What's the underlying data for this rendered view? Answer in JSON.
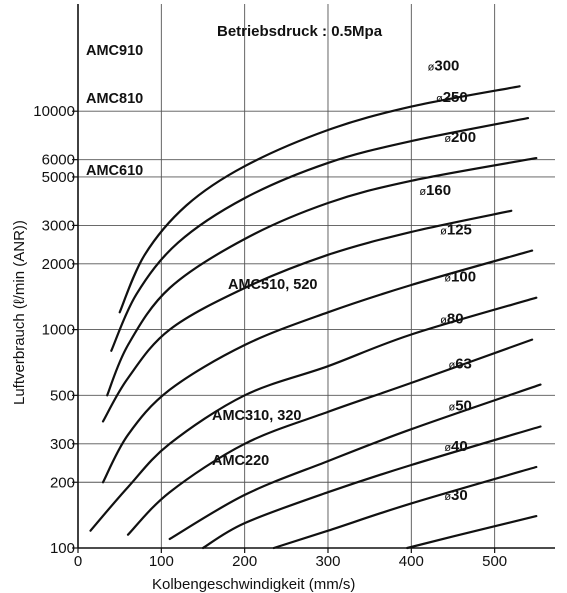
{
  "chart_data": {
    "type": "line",
    "title": "Betriebsdruck : 0.5Mpa",
    "xlabel": "Kolbengeschwindigkeit (mm/s)",
    "ylabel": "Luftverbrauch (ℓ/min (ANR))",
    "xlim": [
      0,
      580
    ],
    "ylim": [
      100,
      15000
    ],
    "yscale": "log",
    "grid": true,
    "x_ticks": [
      "0",
      "100",
      "200",
      "300",
      "400",
      "500"
    ],
    "y_ticks": [
      "100",
      "200",
      "300",
      "500",
      "1000",
      "2000",
      "3000",
      "5000",
      "6000",
      "10000"
    ],
    "series": [
      {
        "name": "ø300",
        "x": [
          50,
          80,
          130,
          200,
          300,
          400,
          530
        ],
        "y": [
          1200,
          2200,
          3700,
          5600,
          8200,
          10500,
          13000
        ]
      },
      {
        "name": "ø250",
        "x": [
          40,
          70,
          120,
          200,
          300,
          400,
          540
        ],
        "y": [
          800,
          1450,
          2500,
          4000,
          5800,
          7300,
          9300
        ]
      },
      {
        "name": "ø200",
        "x": [
          35,
          60,
          110,
          200,
          300,
          400,
          550
        ],
        "y": [
          500,
          850,
          1550,
          2600,
          3800,
          4800,
          6100
        ]
      },
      {
        "name": "ø160",
        "x": [
          30,
          60,
          110,
          200,
          300,
          400,
          520
        ],
        "y": [
          380,
          600,
          1000,
          1550,
          2200,
          2800,
          3500
        ]
      },
      {
        "name": "ø125",
        "x": [
          30,
          60,
          110,
          200,
          300,
          400,
          545
        ],
        "y": [
          200,
          330,
          530,
          850,
          1200,
          1600,
          2300
        ]
      },
      {
        "name": "ø100",
        "x": [
          15,
          60,
          110,
          200,
          300,
          400,
          550
        ],
        "y": [
          120,
          190,
          300,
          500,
          680,
          950,
          1400
        ]
      },
      {
        "name": "ø80",
        "x": [
          60,
          110,
          200,
          300,
          400,
          545
        ],
        "y": [
          115,
          180,
          300,
          420,
          570,
          900
        ]
      },
      {
        "name": "ø63",
        "x": [
          110,
          200,
          300,
          400,
          555
        ],
        "y": [
          110,
          175,
          250,
          350,
          560
        ]
      },
      {
        "name": "ø50",
        "x": [
          150,
          200,
          300,
          400,
          555
        ],
        "y": [
          100,
          130,
          180,
          240,
          360
        ]
      },
      {
        "name": "ø40",
        "x": [
          235,
          300,
          400,
          550
        ],
        "y": [
          100,
          120,
          160,
          235
        ]
      },
      {
        "name": "ø30",
        "x": [
          395,
          450,
          550
        ],
        "y": [
          100,
          113,
          140
        ]
      }
    ],
    "annotations": [
      {
        "text": "AMC910",
        "series": [
          "ø300"
        ]
      },
      {
        "text": "AMC810",
        "series": [
          "ø250"
        ]
      },
      {
        "text": "AMC610",
        "series": [
          "ø200",
          "ø160"
        ]
      },
      {
        "text": "AMC510, 520",
        "series": [
          "ø125",
          "ø100"
        ]
      },
      {
        "text": "AMC310, 320",
        "series": [
          "ø80",
          "ø63"
        ]
      },
      {
        "text": "AMC220",
        "series": [
          "ø50",
          "ø40"
        ]
      }
    ]
  }
}
